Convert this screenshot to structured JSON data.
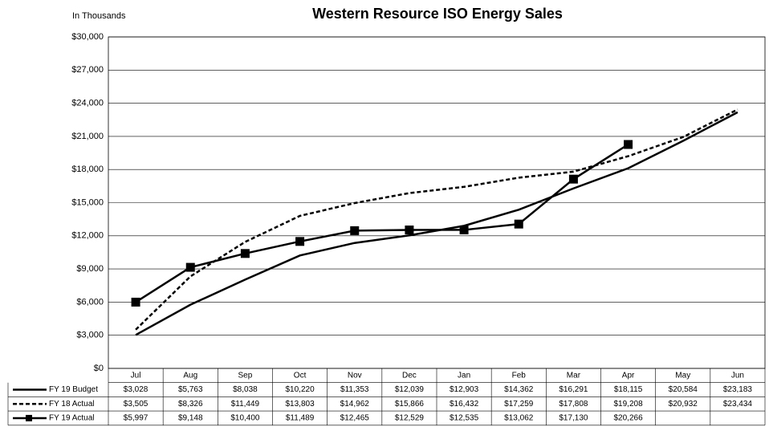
{
  "chart_data": {
    "type": "line",
    "title": "Western Resource ISO Energy Sales",
    "subtitle": "In Thousands",
    "categories": [
      "Jul",
      "Aug",
      "Sep",
      "Oct",
      "Nov",
      "Dec",
      "Jan",
      "Feb",
      "Mar",
      "Apr",
      "May",
      "Jun"
    ],
    "series": [
      {
        "name": "FY 19 Budget",
        "color": "#000000",
        "line_style": "solid",
        "marker": "none",
        "values": [
          3028,
          5763,
          8038,
          10220,
          11353,
          12039,
          12903,
          14362,
          16291,
          18115,
          20584,
          23183
        ],
        "value_labels": [
          "$3,028",
          "$5,763",
          "$8,038",
          "$10,220",
          "$11,353",
          "$12,039",
          "$12,903",
          "$14,362",
          "$16,291",
          "$18,115",
          "$20,584",
          "$23,183"
        ]
      },
      {
        "name": "FY 18 Actual",
        "color": "#000000",
        "line_style": "dashed",
        "marker": "none",
        "values": [
          3505,
          8326,
          11449,
          13803,
          14962,
          15866,
          16432,
          17259,
          17808,
          19208,
          20932,
          23434
        ],
        "value_labels": [
          "$3,505",
          "$8,326",
          "$11,449",
          "$13,803",
          "$14,962",
          "$15,866",
          "$16,432",
          "$17,259",
          "$17,808",
          "$19,208",
          "$20,932",
          "$23,434"
        ]
      },
      {
        "name": "FY 19 Actual",
        "color": "#000000",
        "line_style": "solid",
        "marker": "square",
        "values": [
          5997,
          9148,
          10400,
          11489,
          12465,
          12529,
          12535,
          13062,
          17130,
          20266,
          null,
          null
        ],
        "value_labels": [
          "$5,997",
          "$9,148",
          "$10,400",
          "$11,489",
          "$12,465",
          "$12,529",
          "$12,535",
          "$13,062",
          "$17,130",
          "$20,266",
          null,
          null
        ]
      }
    ],
    "ylim": [
      0,
      30000
    ],
    "yticks": [
      {
        "value": 0,
        "label": "$0"
      },
      {
        "value": 3000,
        "label": "$3,000"
      },
      {
        "value": 6000,
        "label": "$6,000"
      },
      {
        "value": 9000,
        "label": "$9,000"
      },
      {
        "value": 12000,
        "label": "$12,000"
      },
      {
        "value": 15000,
        "label": "$15,000"
      },
      {
        "value": 18000,
        "label": "$18,000"
      },
      {
        "value": 21000,
        "label": "$21,000"
      },
      {
        "value": 24000,
        "label": "$24,000"
      },
      {
        "value": 27000,
        "label": "$27,000"
      },
      {
        "value": 30000,
        "label": "$30,000"
      }
    ],
    "grid": true
  }
}
